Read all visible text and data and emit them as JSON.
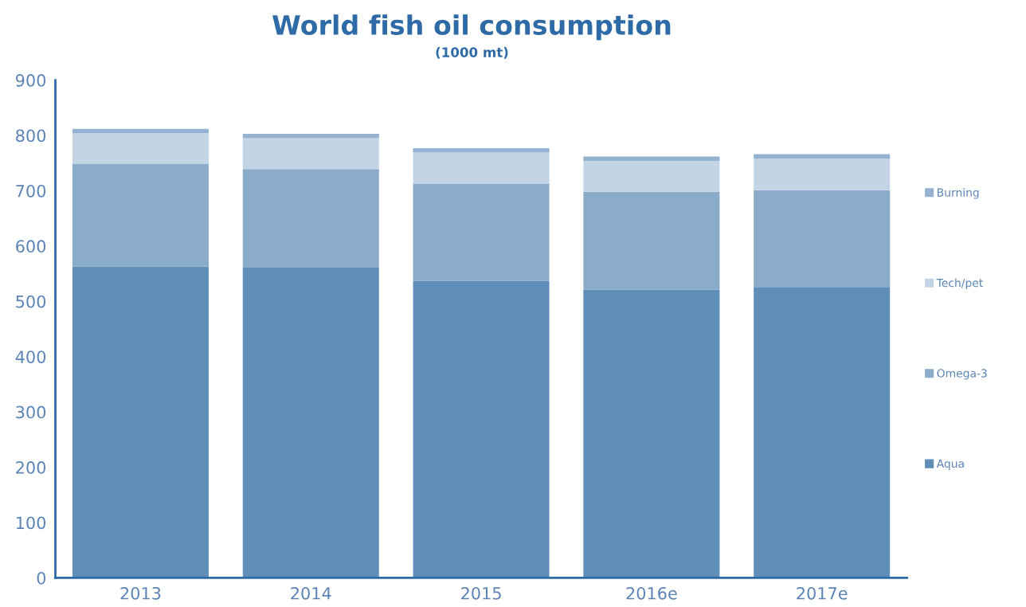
{
  "chart_data": {
    "type": "bar",
    "title": "World fish oil consumption",
    "subtitle": "(1000 mt)",
    "categories": [
      "2013",
      "2014",
      "2015",
      "2016e",
      "2017e"
    ],
    "stacked": true,
    "series": [
      {
        "name": "Aqua",
        "color": "#5f8eb8",
        "values": [
          563,
          561,
          537,
          521,
          526
        ]
      },
      {
        "name": "Omega-3",
        "color": "#8aacca",
        "values": [
          185,
          178,
          175,
          177,
          175
        ]
      },
      {
        "name": "Tech/pet",
        "color": "#c3d4e5",
        "values": [
          56,
          56,
          57,
          56,
          57
        ]
      },
      {
        "name": "Burning",
        "color": "#95b3d0",
        "values": [
          8,
          8,
          8,
          8,
          8
        ]
      }
    ],
    "ylim": [
      0,
      900
    ],
    "yticks": [
      0,
      100,
      200,
      300,
      400,
      500,
      600,
      700,
      800,
      900
    ],
    "grid": false,
    "legend": "right"
  }
}
